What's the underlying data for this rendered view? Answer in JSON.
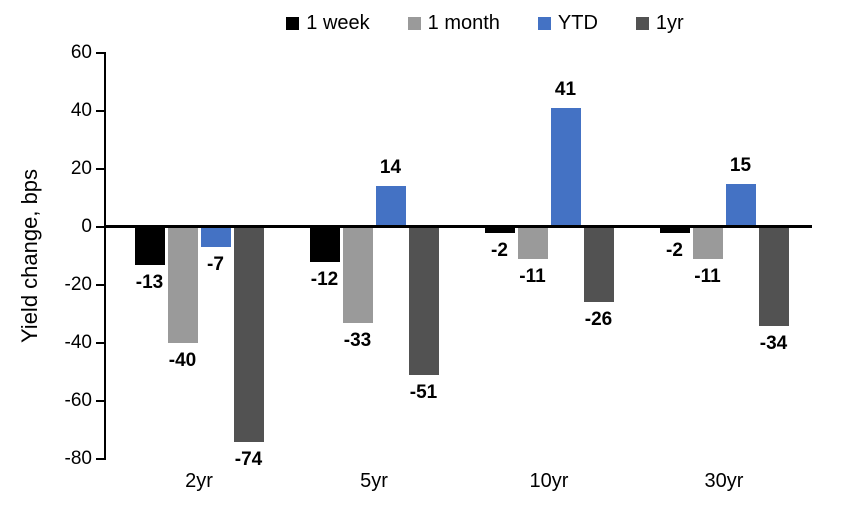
{
  "chart_data": {
    "type": "bar",
    "title": "",
    "ylabel": "Yield change, bps",
    "xlabel": "",
    "categories": [
      "2yr",
      "5yr",
      "10yr",
      "30yr"
    ],
    "series": [
      {
        "name": "1 week",
        "color": "#000000",
        "values": [
          -13,
          -12,
          -2,
          -2
        ]
      },
      {
        "name": "1 month",
        "color": "#9A9A9A",
        "values": [
          -40,
          -33,
          -11,
          -11
        ]
      },
      {
        "name": "YTD",
        "color": "#4472C4",
        "values": [
          -7,
          14,
          41,
          15
        ]
      },
      {
        "name": "1yr",
        "color": "#525252",
        "values": [
          -74,
          -51,
          -26,
          -34
        ]
      }
    ],
    "ylim": [
      -80,
      60
    ],
    "yticks": [
      60,
      40,
      20,
      0,
      -20,
      -40,
      -60,
      -80
    ],
    "grid": false,
    "legend_position": "top",
    "data_labels": true,
    "axis_color": "#000000"
  }
}
